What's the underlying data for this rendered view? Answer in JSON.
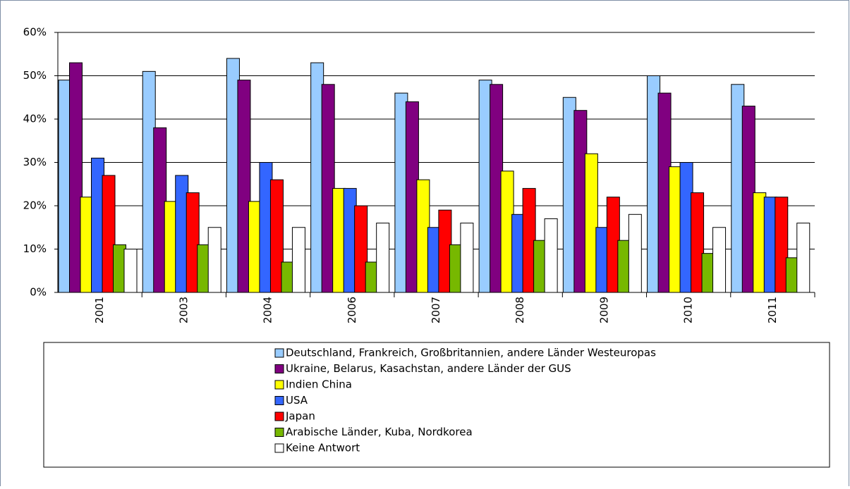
{
  "chart_data": {
    "type": "bar",
    "categories": [
      "2001",
      "2003",
      "2004",
      "2006",
      "2007",
      "2008",
      "2009",
      "2010",
      "2011"
    ],
    "series": [
      {
        "name": "Deutschland, Frankreich, Großbritannien, andere Länder Westeuropas",
        "color": "#99ccff",
        "values": [
          49,
          51,
          54,
          53,
          46,
          49,
          45,
          50,
          48
        ]
      },
      {
        "name": "Ukraine, Belarus, Kasachstan, andere Länder der GUS",
        "color": "#800080",
        "values": [
          53,
          38,
          49,
          48,
          44,
          48,
          42,
          46,
          43
        ]
      },
      {
        "name": "Indien China",
        "color": "#ffff00",
        "values": [
          22,
          21,
          21,
          24,
          26,
          28,
          32,
          29,
          23
        ]
      },
      {
        "name": "USA",
        "color": "#3366ff",
        "values": [
          31,
          27,
          30,
          24,
          15,
          18,
          15,
          30,
          22
        ]
      },
      {
        "name": "Japan",
        "color": "#ff0000",
        "values": [
          27,
          23,
          26,
          20,
          19,
          24,
          22,
          23,
          22
        ]
      },
      {
        "name": "Arabische Länder, Kuba, Nordkorea",
        "color": "#77b800",
        "values": [
          11,
          11,
          7,
          7,
          11,
          12,
          12,
          9,
          8
        ]
      },
      {
        "name": "Keine Antwort",
        "color": "#ffffff",
        "values": [
          10,
          15,
          15,
          16,
          16,
          17,
          18,
          15,
          16
        ]
      }
    ],
    "ylim": [
      0,
      60
    ],
    "yticks": [
      {
        "value": 0,
        "label": "0%"
      },
      {
        "value": 10,
        "label": "10%"
      },
      {
        "value": 20,
        "label": "20%"
      },
      {
        "value": 30,
        "label": "30%"
      },
      {
        "value": 40,
        "label": "40%"
      },
      {
        "value": 50,
        "label": "50%"
      },
      {
        "value": 60,
        "label": "60%"
      }
    ],
    "grid": true
  }
}
